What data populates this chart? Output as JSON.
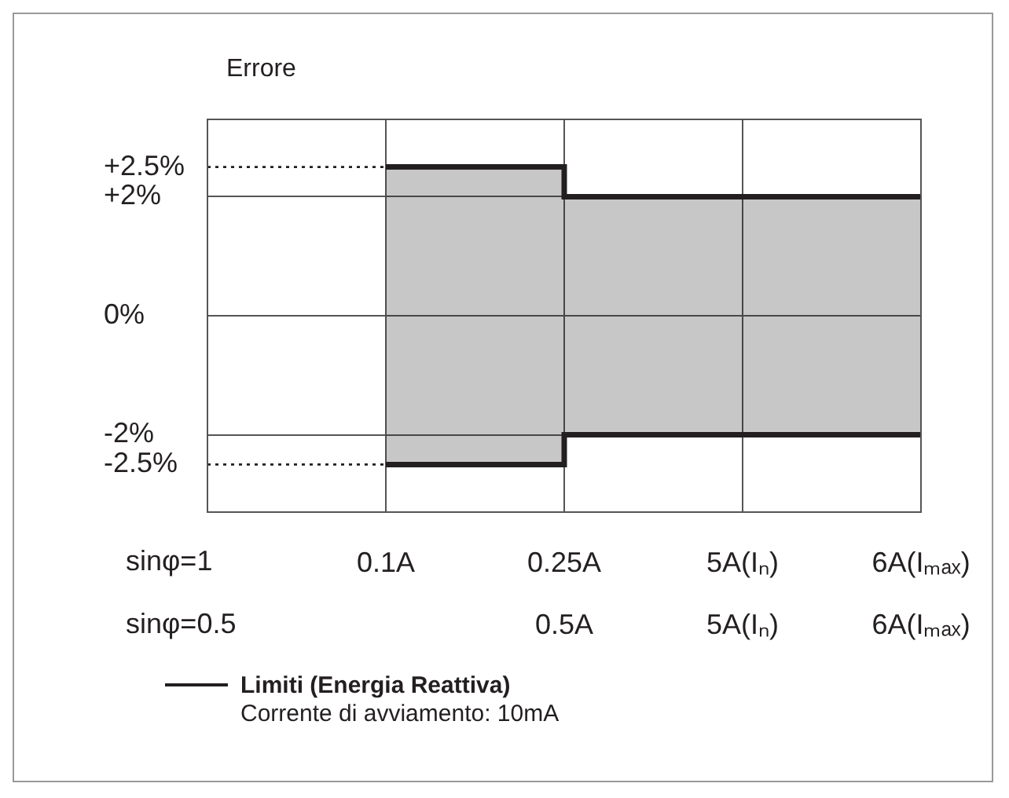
{
  "chart_data": {
    "type": "step",
    "ylabel": "Errore",
    "categories": [
      null,
      "0.1A",
      "0.25A\n0.5A",
      "5A(Iₙ)\n5A(Iₙ)",
      "6A(Iₘₐₓ)\n6A(Iₘₐₓ)"
    ],
    "series": [
      {
        "name": "Limiti (Energia Reattiva)",
        "type": "step",
        "color": "#231f20",
        "values": [
          null,
          2.5,
          2,
          2,
          2
        ],
        "lower": [
          null,
          -2.5,
          -2,
          -2,
          -2
        ],
        "upper": [
          null,
          2.5,
          2,
          2,
          2
        ]
      },
      {
        "type": "step",
        "color": "#231f20",
        "values": [
          null,
          -2.5,
          -2,
          -2,
          -2
        ]
      }
    ],
    "ylim": [
      -3.3,
      3.3
    ],
    "yticks": [
      {
        "value": 2.5,
        "label": "+2.5%"
      },
      {
        "value": 2,
        "label": "+2%"
      },
      {
        "value": 0,
        "label": "0%"
      },
      {
        "value": -2,
        "label": "-2%"
      },
      {
        "value": -2.5,
        "label": "-2.5%"
      }
    ],
    "grid": true,
    "ref_lines": [
      {
        "axis": "y",
        "value": 2.5,
        "line_style": "dotted"
      },
      {
        "axis": "y",
        "value": -2.5,
        "line_style": "dotted"
      }
    ],
    "legend": "bottom left",
    "annotations": [
      "sinφ=1",
      "sinφ=0.5",
      "Corrente di avviamento: 10mA"
    ]
  }
}
